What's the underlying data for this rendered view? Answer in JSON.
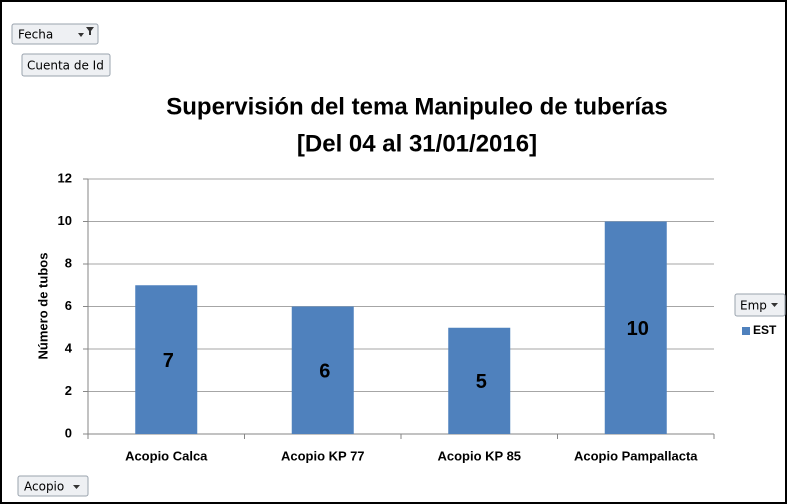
{
  "chart_data": {
    "type": "bar",
    "title": [
      "Supervisión del tema Manipuleo de tuberías",
      "[Del 04 al 31/01/2016]"
    ],
    "y_label": "Número de tubos",
    "categories": [
      "Acopio Calca",
      "Acopio KP 77",
      "Acopio KP 85",
      "Acopio Pampallacta"
    ],
    "series": [
      {
        "name": "EST",
        "color": "#4f81bd",
        "values": [
          7,
          6,
          5,
          10
        ]
      }
    ],
    "ylim": [
      0,
      12
    ],
    "yticks": [
      0,
      2,
      4,
      6,
      8,
      10,
      12
    ],
    "grid": true,
    "data_labels": true,
    "legend": "right",
    "report_filter_field": "Fecha",
    "values_field": "Cuenta de Id",
    "legend_field": "Emp",
    "axis_field": "Acopio"
  }
}
